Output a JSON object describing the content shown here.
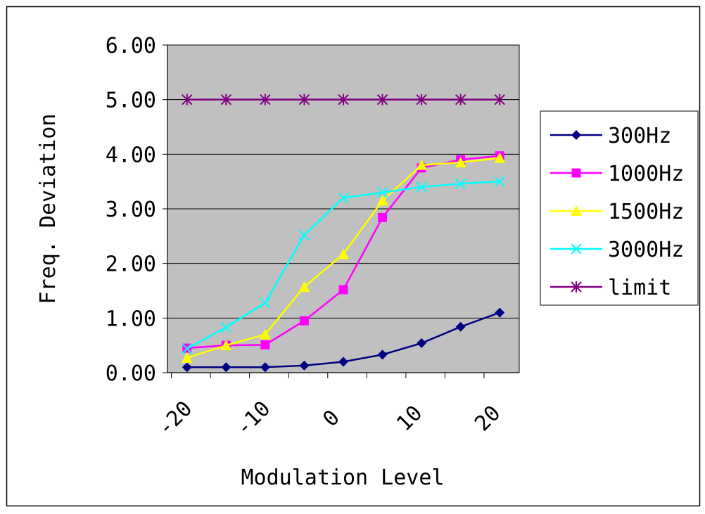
{
  "chart_data": {
    "type": "line",
    "title": "",
    "xlabel": "Modulation Level",
    "ylabel": "Freq. Deviation",
    "x": [
      -18,
      -13,
      -8,
      -3,
      2,
      7,
      12,
      17,
      22
    ],
    "x_tick_labels": [
      "-20",
      "-10",
      "0",
      "10",
      "20"
    ],
    "y_tick_labels": [
      "0.00",
      "1.00",
      "2.00",
      "3.00",
      "4.00",
      "5.00",
      "6.00"
    ],
    "ylim": [
      0,
      6
    ],
    "grid": "horizontal",
    "legend_position": "right",
    "plot_background": "#c0c0c0",
    "series": [
      {
        "name": "300Hz",
        "color": "#000080",
        "marker": "diamond",
        "values": [
          0.1,
          0.1,
          0.1,
          0.13,
          0.2,
          0.33,
          0.54,
          0.84,
          1.1
        ]
      },
      {
        "name": "1000Hz",
        "color": "#ff00ff",
        "marker": "square",
        "values": [
          0.45,
          0.5,
          0.51,
          0.95,
          1.52,
          2.84,
          3.75,
          3.9,
          3.97
        ]
      },
      {
        "name": "1500Hz",
        "color": "#ffff00",
        "marker": "triangle",
        "values": [
          0.27,
          0.5,
          0.7,
          1.57,
          2.17,
          3.15,
          3.8,
          3.85,
          3.93
        ]
      },
      {
        "name": "3000Hz",
        "color": "#00ffff",
        "marker": "x",
        "values": [
          0.44,
          0.83,
          1.28,
          2.52,
          3.2,
          3.3,
          3.4,
          3.46,
          3.5
        ]
      },
      {
        "name": "limit",
        "color": "#800080",
        "marker": "asterisk",
        "values": [
          5,
          5,
          5,
          5,
          5,
          5,
          5,
          5,
          5
        ]
      }
    ]
  }
}
